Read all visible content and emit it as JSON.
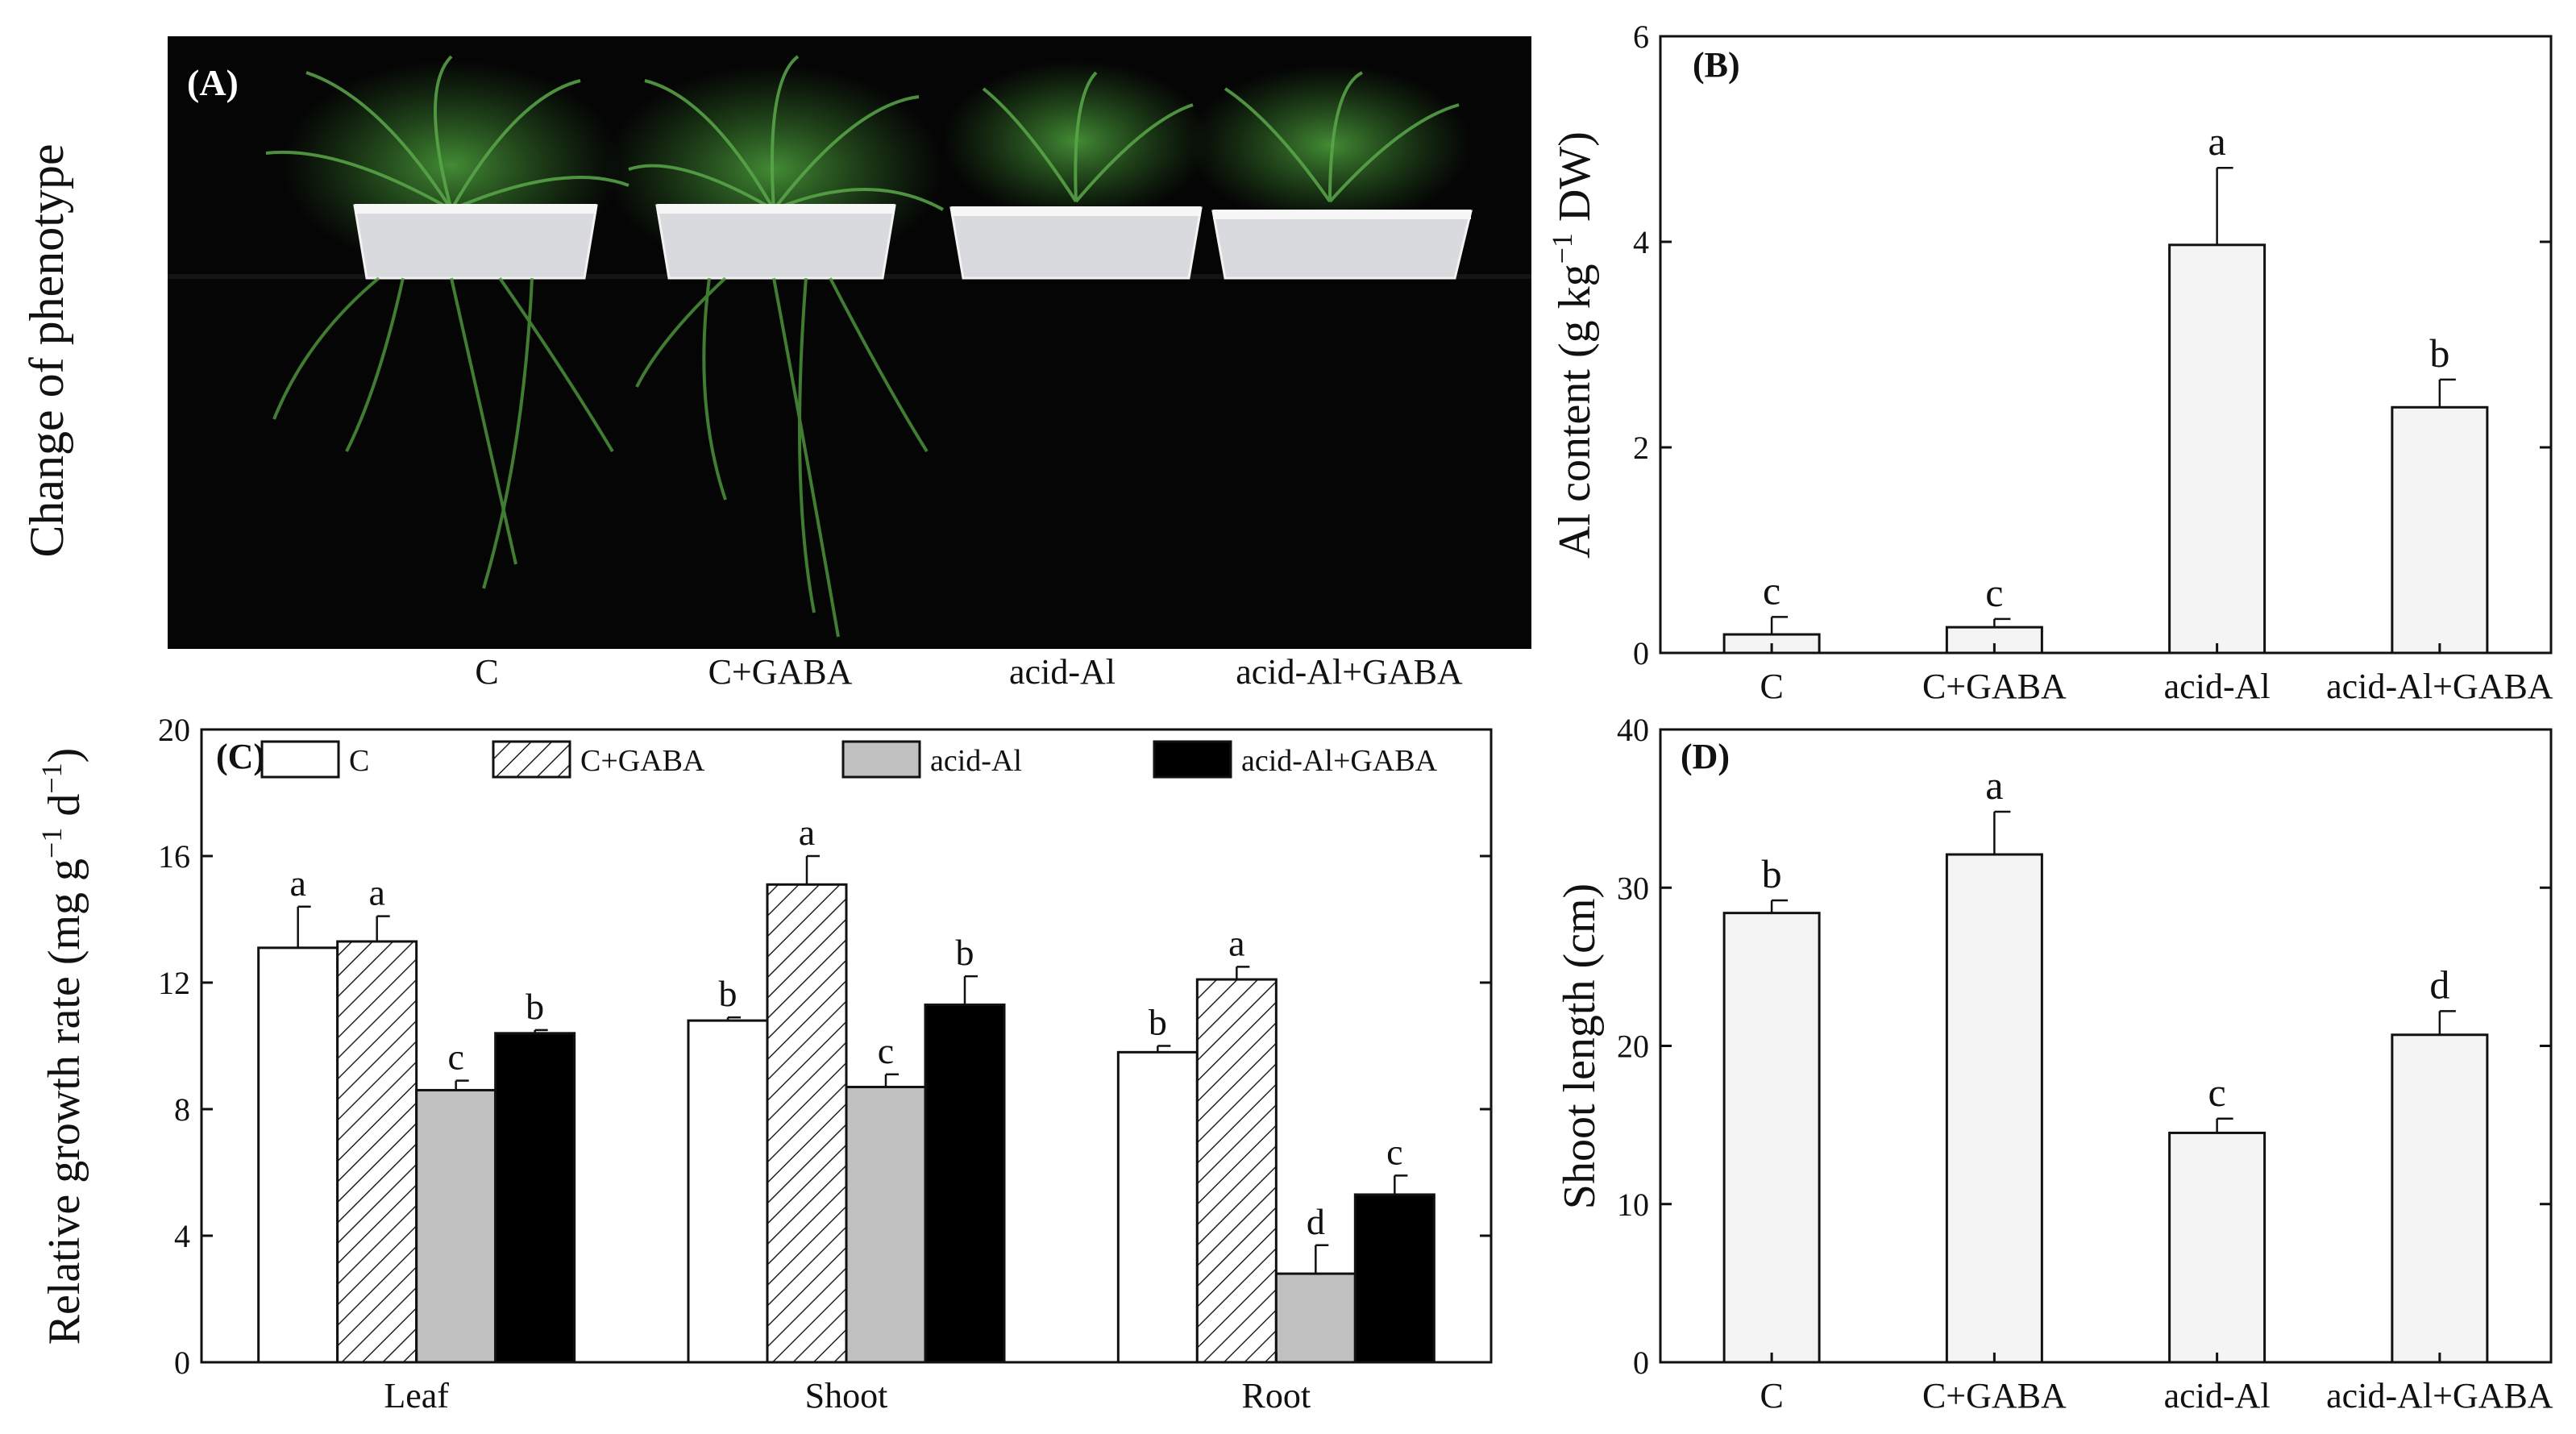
{
  "panel_a": {
    "label": "(A)",
    "side_label": "Change of phenotype",
    "treatments": [
      "C",
      "C+GABA",
      "acid-Al",
      "acid-Al+GABA"
    ]
  },
  "chart_data": [
    {
      "panel": "(B)",
      "type": "bar",
      "ylabel": "Al content (g kg−1 DW)",
      "ylabel_parts": {
        "main": "Al content (g kg",
        "sup": "−1",
        "tail": " DW)"
      },
      "categories": [
        "C",
        "C+GABA",
        "acid-Al",
        "acid-Al+GABA"
      ],
      "values": [
        0.18,
        0.25,
        3.97,
        2.39
      ],
      "errors": [
        0.17,
        0.08,
        0.75,
        0.27
      ],
      "letters": [
        "c",
        "c",
        "a",
        "b"
      ],
      "ylim": [
        0,
        6
      ],
      "yticks": [
        0,
        2,
        4,
        6
      ]
    },
    {
      "panel": "(C)",
      "type": "bar",
      "ylabel": "Relative growth rate (mg g−1 d−1)",
      "ylabel_parts": {
        "main": "Relative growth rate (mg g",
        "sup1": "−1",
        "mid": " d",
        "sup2": "−1",
        "tail": ")"
      },
      "categories": [
        "Leaf",
        "Shoot",
        "Root"
      ],
      "series": [
        {
          "name": "C",
          "values": [
            13.1,
            10.8,
            9.8
          ],
          "errors": [
            1.3,
            0.1,
            0.2
          ],
          "letters": [
            "a",
            "b",
            "b"
          ],
          "fill": "#ffffff"
        },
        {
          "name": "C+GABA",
          "values": [
            13.3,
            15.1,
            12.1
          ],
          "errors": [
            0.8,
            0.9,
            0.4
          ],
          "letters": [
            "a",
            "a",
            "a"
          ],
          "fill": "hatch"
        },
        {
          "name": "acid-Al",
          "values": [
            8.6,
            8.7,
            2.8
          ],
          "errors": [
            0.3,
            0.4,
            0.9
          ],
          "letters": [
            "c",
            "c",
            "d"
          ],
          "fill": "#c0c0c0"
        },
        {
          "name": "acid-Al+GABA",
          "values": [
            10.4,
            11.3,
            5.3
          ],
          "errors": [
            0.1,
            0.9,
            0.6
          ],
          "letters": [
            "b",
            "b",
            "c"
          ],
          "fill": "#000000"
        }
      ],
      "ylim": [
        0,
        20
      ],
      "yticks": [
        0,
        4,
        8,
        12,
        16,
        20
      ],
      "legend_position": "top"
    },
    {
      "panel": "(D)",
      "type": "bar",
      "ylabel": "Shoot length (cm)",
      "categories": [
        "C",
        "C+GABA",
        "acid-Al",
        "acid-Al+GABA"
      ],
      "values": [
        28.4,
        32.1,
        14.5,
        20.7
      ],
      "errors": [
        0.8,
        2.7,
        0.9,
        1.5
      ],
      "letters": [
        "b",
        "a",
        "c",
        "d"
      ],
      "ylim": [
        0,
        40
      ],
      "yticks": [
        0,
        10,
        20,
        30,
        40
      ]
    }
  ]
}
